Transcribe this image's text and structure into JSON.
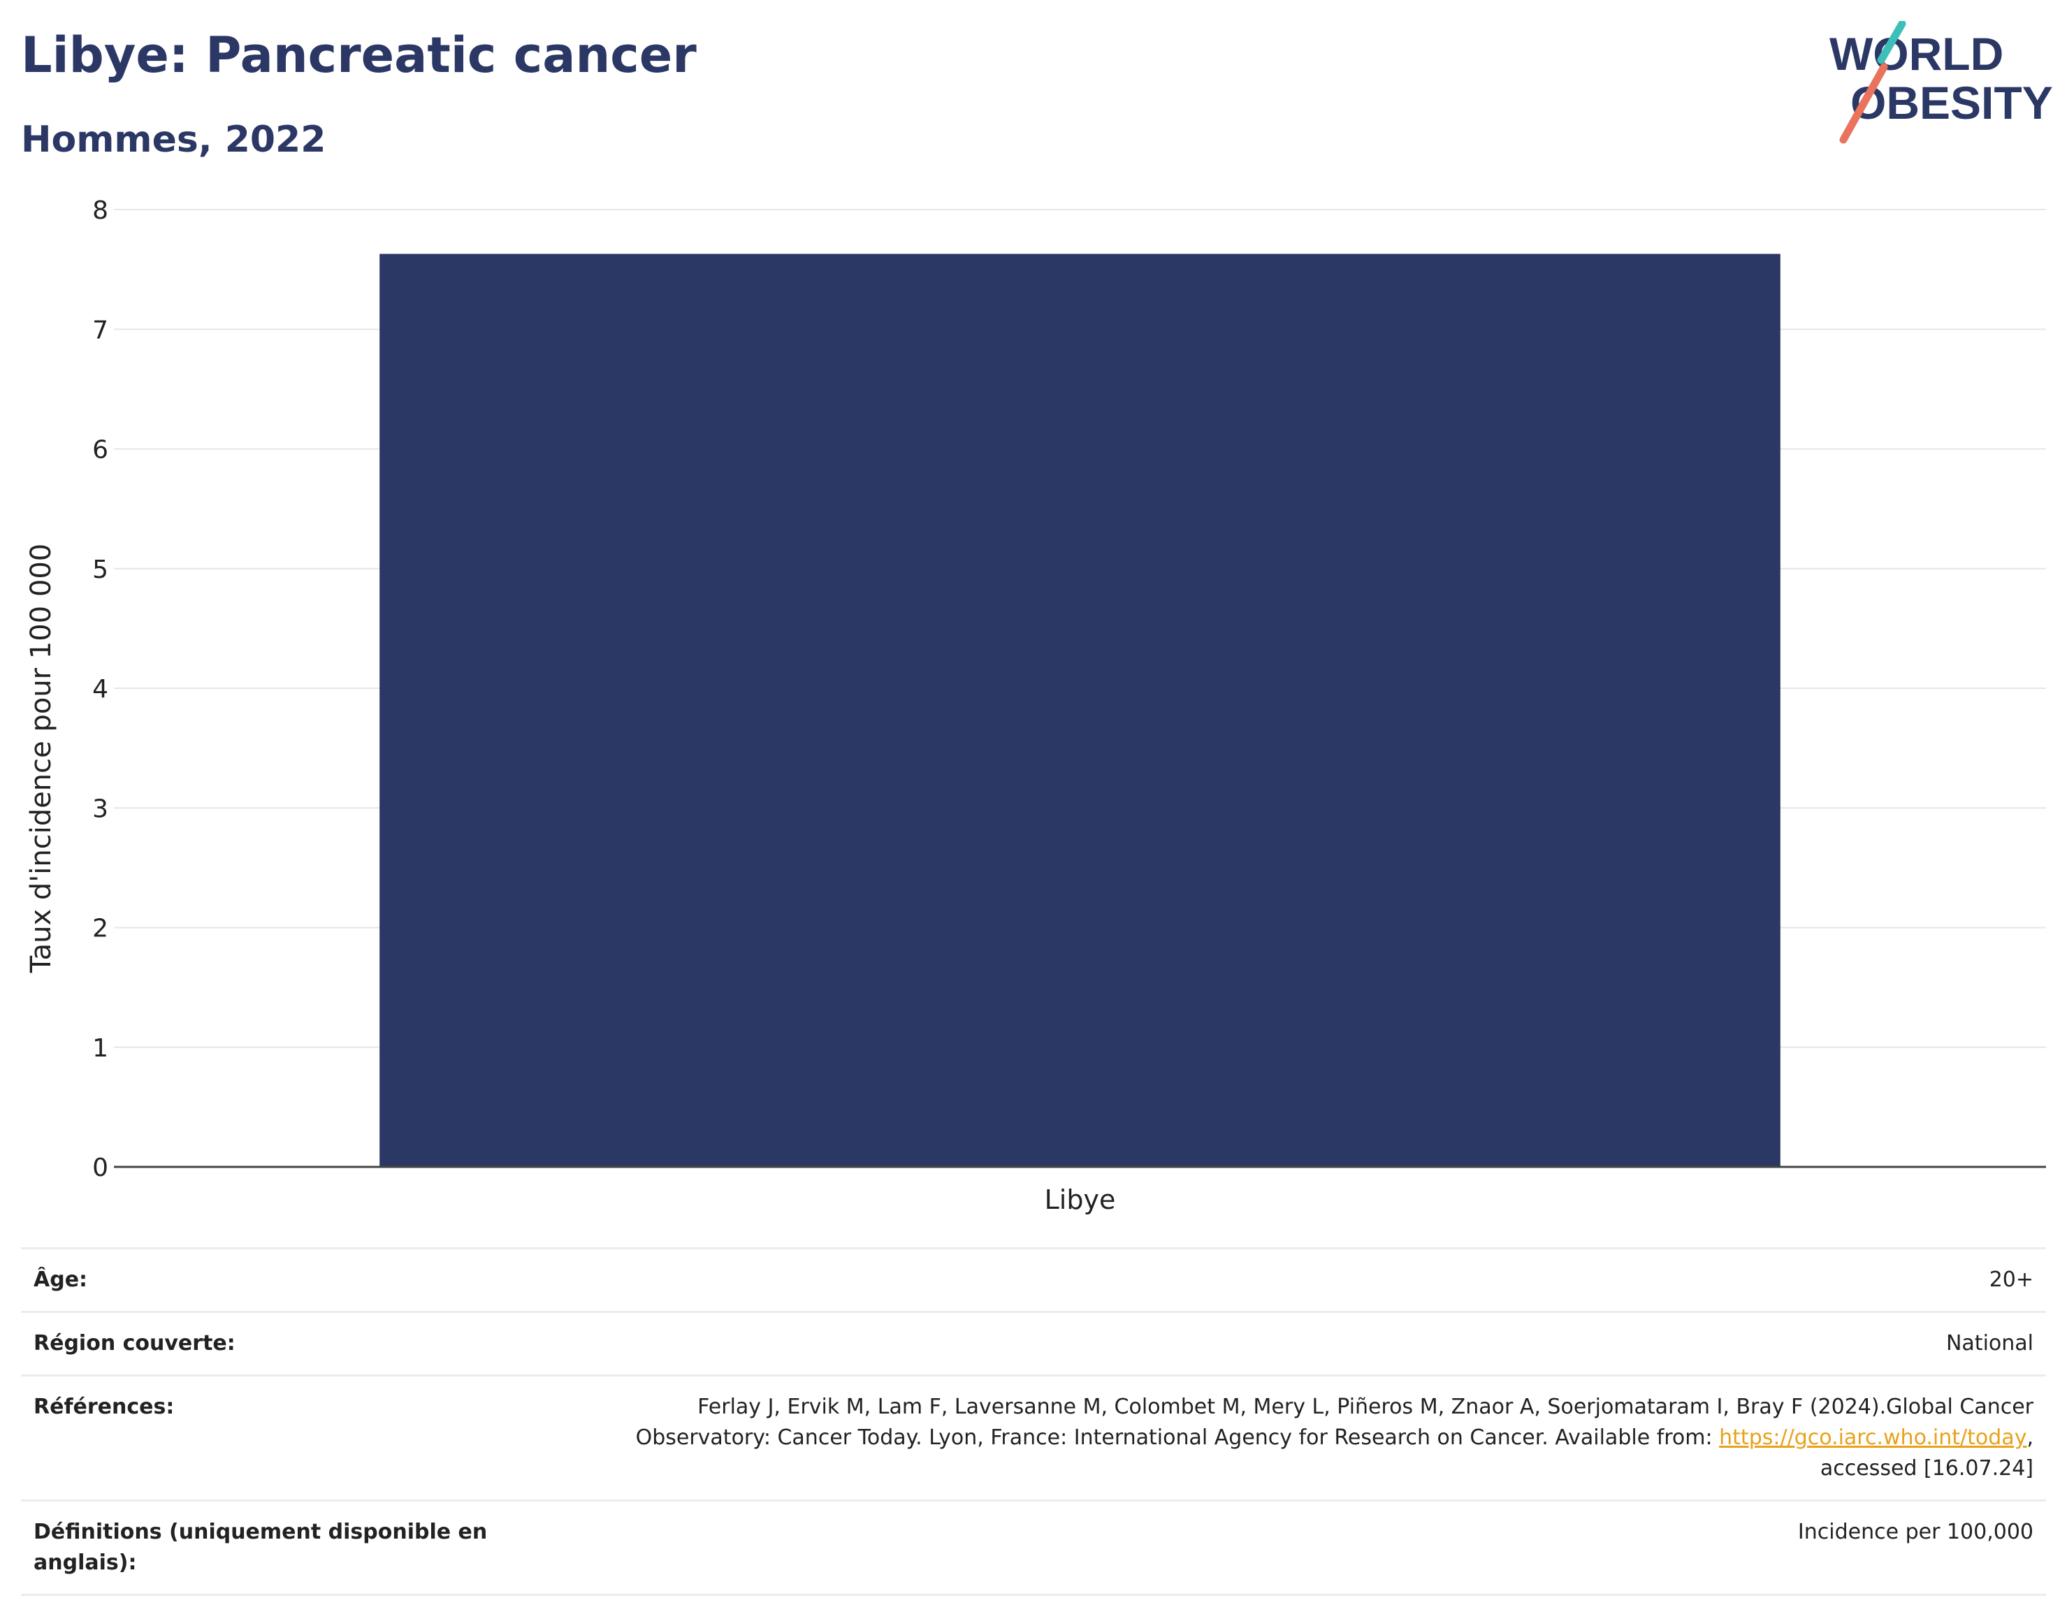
{
  "header": {
    "title": "Libye: Pancreatic cancer",
    "subtitle": "Hommes, 2022"
  },
  "logo": {
    "line1": "WORLD",
    "line2": "OBESITY",
    "colors": {
      "text": "#2b3764",
      "teal": "#3bbfb8",
      "coral": "#e9735d"
    }
  },
  "chart_data": {
    "type": "bar",
    "categories": [
      "Libye"
    ],
    "values": [
      7.63
    ],
    "ylabel": "Taux d'incidence pour 100 000",
    "xlabel": "",
    "ylim": [
      0,
      8
    ],
    "yticks": [
      "0",
      "1",
      "2",
      "3",
      "4",
      "5",
      "6",
      "7",
      "8"
    ],
    "grid": true,
    "bar_color": "#2b3764"
  },
  "metadata": {
    "age_label": "Âge:",
    "age_value": "20+",
    "region_label": "Région couverte:",
    "region_value": "National",
    "ref_label": "Références:",
    "ref_text1": "Ferlay J, Ervik M, Lam F, Laversanne M, Colombet M, Mery L, Piñeros M, Znaor A, Soerjomataram I, Bray F (2024).Global Cancer",
    "ref_text2": "Observatory: Cancer Today. Lyon, France: International Agency for Research on Cancer. Available from: ",
    "ref_link": "https://gco.iarc.who.int/today",
    "ref_text3": ",",
    "ref_text4": "accessed [16.07.24]",
    "def_label": "Définitions (uniquement disponible en anglais):",
    "def_value": "Incidence per 100,000"
  }
}
